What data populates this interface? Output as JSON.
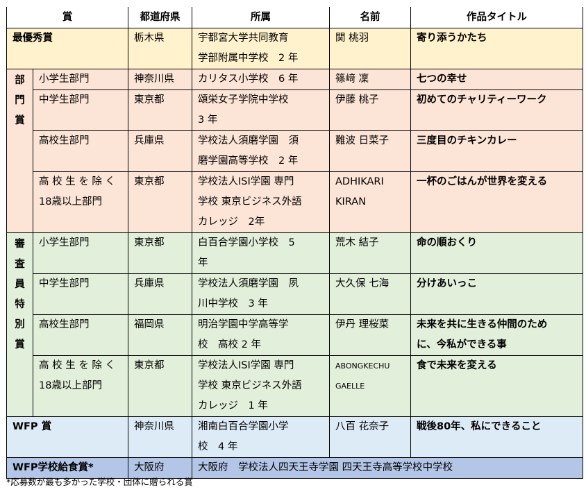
{
  "headers": [
    "賞",
    "都道府県",
    "所属",
    "名前",
    "作品タイトル"
  ],
  "grand": {
    "award": "最優秀賞",
    "pref": "栃木県",
    "aff": "宇都宮大学共同教育\n学部附属中学校　2 年",
    "name": "関 桃羽",
    "title": "寄り添うかたち"
  },
  "division": {
    "label": "部\n門\n賞",
    "rows": [
      {
        "cat": "小学生部門",
        "pref": "神奈川県",
        "aff": "カリタス小学校　6 年",
        "name": "篠﨑 凜",
        "title": "七つの幸せ"
      },
      {
        "cat": "中学生部門",
        "pref": "東京都",
        "aff": "頌栄女子学院中学校\n3 年",
        "name": "伊藤 桃子",
        "title": "初めてのチャリティーワーク"
      },
      {
        "cat": "高校生部門",
        "pref": "兵庫県",
        "aff": "学校法人須磨学園　須\n磨学園高等学校　2 年",
        "name": "難波 日菜子",
        "title": "三度目のチキンカレー"
      },
      {
        "cat": "高 校 生 を 除 く\n18歳以上部門",
        "pref": "東京都",
        "aff": "学校法人ISI学園 専門\n学校 東京ビジネス外語\nカレッジ　2年",
        "name": "ADHIKARI\nKIRAN",
        "title": "一杯のごはんが世界を変える"
      }
    ]
  },
  "jury": {
    "label": "審\n査\n員\n特\n別\n賞",
    "rows": [
      {
        "cat": "小学生部門",
        "pref": "東京都",
        "aff": "白百合学園小学校　5\n年",
        "name": "荒木 結子",
        "title": "命の順おくり"
      },
      {
        "cat": "中学生部門",
        "pref": "兵庫県",
        "aff": "学校法人須磨学園　夙\n川中学校　3 年",
        "name": "大久保 七海",
        "title": "分けあいっこ"
      },
      {
        "cat": "高校生部門",
        "pref": "福岡県",
        "aff": "明治学園中学高等学\n校　高校 2 年",
        "name": "伊丹 理桜菜",
        "title": "未来を共に生きる仲間のため\nに、今私ができる事"
      },
      {
        "cat": "高 校 生 を 除 く\n18歳以上部門",
        "pref": "東京都",
        "aff": "学校法人ISI学園 専門\n学校 東京ビジネス外語\nカレッジ　1 年",
        "name": "ABONGKECHU\nGAELLE",
        "title": "食で未来を変える"
      }
    ]
  },
  "wfp": {
    "award": "WFP 賞",
    "pref": "神奈川県",
    "aff": "湘南白百合学園小学\n校　4 年",
    "name": "八百 花奈子",
    "title": "戦後80年、私にできること"
  },
  "meal": {
    "award": "WFP学校給食賞*",
    "pref": "大阪府",
    "aff": "大阪府　学校法人四天王寺学園 四天王寺高等学校中学校"
  },
  "footnote": "*応募数が最も多かった学校・団体に贈られる賞",
  "colors": {
    "grand": "#FFF2CC",
    "division": "#FCE4D6",
    "jury": "#E2EFDA",
    "wfp": "#DDEBF7",
    "meal": "#B4C6E7"
  }
}
